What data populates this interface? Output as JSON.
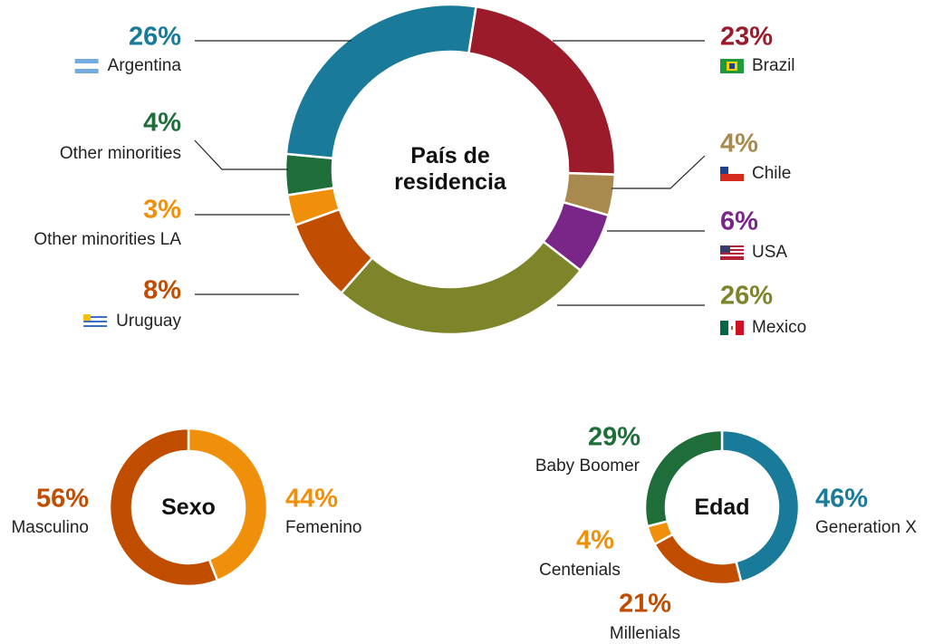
{
  "chart_data": [
    {
      "type": "pie",
      "title": "País de residencia",
      "categories": [
        "Brazil",
        "Chile",
        "USA",
        "Mexico",
        "Uruguay",
        "Other minorities LA",
        "Other minorities",
        "Argentina"
      ],
      "values": [
        23,
        4,
        6,
        26,
        8,
        3,
        4,
        26
      ],
      "value_labels": [
        "23%",
        "4%",
        "6%",
        "26%",
        "8%",
        "3%",
        "4%",
        "26%"
      ],
      "colors": [
        "#9b1b2a",
        "#a98a4e",
        "#7a2688",
        "#7d8429",
        "#c04d00",
        "#f0900a",
        "#1f6e3a",
        "#1a7a99"
      ]
    },
    {
      "type": "pie",
      "title": "Sexo",
      "categories": [
        "Femenino",
        "Masculino"
      ],
      "values": [
        44,
        56
      ],
      "value_labels": [
        "44%",
        "56%"
      ],
      "colors": [
        "#f0900a",
        "#c04d00"
      ]
    },
    {
      "type": "pie",
      "title": "Edad",
      "categories": [
        "Generation X",
        "Millenials",
        "Centenials",
        "Baby Boomer"
      ],
      "values": [
        46,
        21,
        4,
        29
      ],
      "value_labels": [
        "46%",
        "21%",
        "4%",
        "29%"
      ],
      "colors": [
        "#1a7a99",
        "#c04d00",
        "#f0900a",
        "#1f6e3a"
      ]
    }
  ]
}
